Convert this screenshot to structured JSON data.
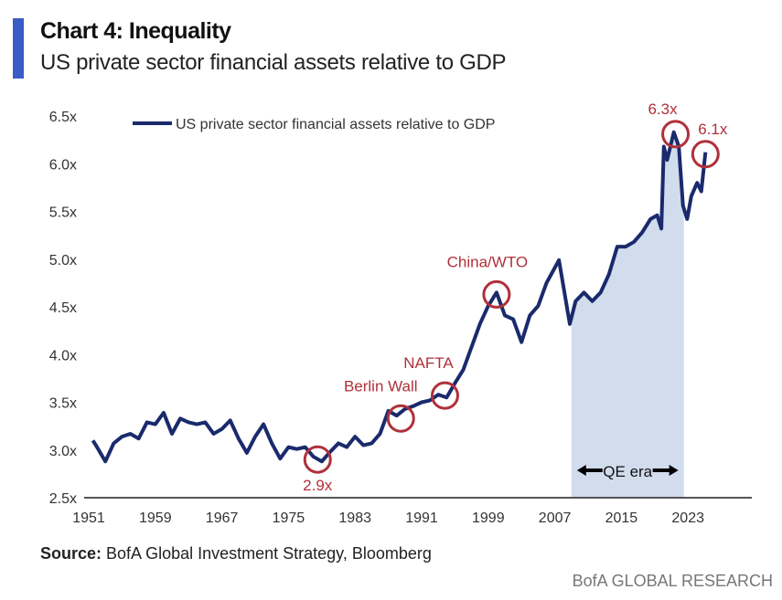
{
  "header": {
    "title": "Chart 4: Inequality",
    "subtitle": "US private sector financial assets relative to GDP"
  },
  "footer": {
    "source_label": "Source:",
    "source_text": " BofA Global Investment Strategy, Bloomberg",
    "brand": "BofA GLOBAL RESEARCH"
  },
  "colors": {
    "line": "#1a2a6c",
    "annotation": "#b0303a",
    "accent_bar": "#3b5bc6",
    "shade": "#c9d6ea"
  },
  "chart_data": {
    "type": "line",
    "title": "US private sector financial assets relative to GDP",
    "xlabel": "",
    "ylabel": "",
    "xlim": [
      1951,
      2031
    ],
    "ylim": [
      2.5,
      6.5
    ],
    "x_ticks": [
      "1951",
      "1959",
      "1967",
      "1975",
      "1983",
      "1991",
      "1999",
      "2007",
      "2015",
      "2023"
    ],
    "y_ticks": [
      "2.5x",
      "3.0x",
      "3.5x",
      "4.0x",
      "4.5x",
      "5.0x",
      "5.5x",
      "6.0x",
      "6.5x"
    ],
    "grid": false,
    "legend": {
      "position": "top-left",
      "entries": [
        "US private sector financial assets relative to GDP"
      ]
    },
    "series": [
      {
        "name": "US private sector financial assets relative to GDP",
        "x": [
          1951.5,
          1952,
          1953,
          1954,
          1955,
          1956,
          1957,
          1958,
          1959,
          1960,
          1961,
          1962,
          1963,
          1964,
          1965,
          1966,
          1967,
          1968,
          1969,
          1970,
          1971,
          1972,
          1973,
          1974,
          1975,
          1976,
          1977,
          1978,
          1979,
          1980,
          1981,
          1982,
          1983,
          1984,
          1985,
          1986,
          1987,
          1988,
          1989,
          1990,
          1991,
          1992,
          1993,
          1994,
          1995,
          1996,
          1997,
          1998,
          1999,
          2000,
          2001,
          2002,
          2003,
          2004,
          2005,
          2006,
          2007.5,
          2008.8,
          2009.5,
          2010.5,
          2011.5,
          2012.5,
          2013.5,
          2014.5,
          2015.5,
          2016.5,
          2017.5,
          2018.5,
          2019.3,
          2019.8,
          2020.1,
          2020.5,
          2021.3,
          2021.9,
          2022.4,
          2022.9,
          2023.4,
          2024.1,
          2024.6,
          2025.1
        ],
        "y": [
          3.1,
          3.03,
          2.88,
          3.07,
          3.14,
          3.17,
          3.12,
          3.29,
          3.27,
          3.39,
          3.17,
          3.33,
          3.29,
          3.27,
          3.29,
          3.17,
          3.22,
          3.31,
          3.12,
          2.97,
          3.14,
          3.27,
          3.07,
          2.91,
          3.03,
          3.01,
          3.03,
          2.93,
          2.88,
          2.98,
          3.07,
          3.03,
          3.14,
          3.05,
          3.07,
          3.17,
          3.41,
          3.36,
          3.43,
          3.46,
          3.5,
          3.52,
          3.58,
          3.55,
          3.7,
          3.84,
          4.08,
          4.32,
          4.51,
          4.65,
          4.41,
          4.37,
          4.13,
          4.41,
          4.51,
          4.75,
          4.99,
          4.32,
          4.56,
          4.65,
          4.56,
          4.65,
          4.84,
          5.13,
          5.13,
          5.18,
          5.28,
          5.42,
          5.46,
          5.32,
          6.18,
          6.04,
          6.33,
          6.18,
          5.56,
          5.42,
          5.66,
          5.8,
          5.71,
          6.12
        ]
      }
    ],
    "shaded_region": {
      "label": "QE era",
      "x": [
        2009,
        2022.5
      ]
    },
    "annotations": [
      {
        "label": "2.9x",
        "x": 1978.5,
        "y": 2.9
      },
      {
        "label": "Berlin Wall",
        "x": 1988.5,
        "y": 3.33
      },
      {
        "label": "NAFTA",
        "x": 1993.8,
        "y": 3.57
      },
      {
        "label": "China/WTO",
        "x": 2000,
        "y": 4.63
      },
      {
        "label": "6.3x",
        "x": 2021.5,
        "y": 6.31
      },
      {
        "label": "6.1x",
        "x": 2025.1,
        "y": 6.1
      }
    ]
  }
}
